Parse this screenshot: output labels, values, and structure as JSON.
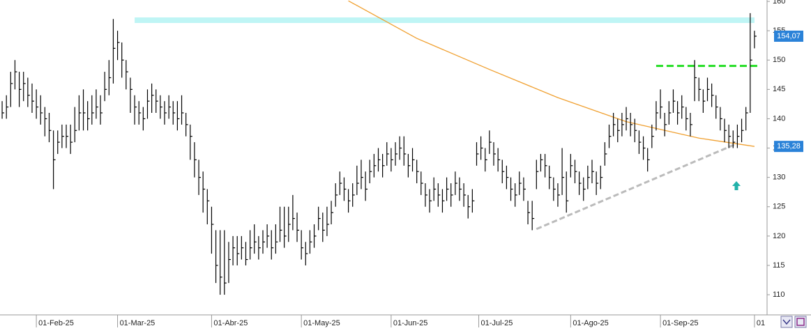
{
  "chart_data": {
    "type": "ohlc",
    "xlim": [
      -0.5,
      176.5
    ],
    "ylim": [
      106.8,
      160.24
    ],
    "yticks": [
      110,
      115,
      120,
      125,
      130,
      135,
      140,
      145,
      150,
      155,
      160
    ],
    "xticks": [
      {
        "value": 8,
        "label": "01-Feb-25"
      },
      {
        "value": 27,
        "label": "01-Mar-25"
      },
      {
        "value": 49,
        "label": "01-Abr-25"
      },
      {
        "value": 70,
        "label": "01-May-25"
      },
      {
        "value": 91,
        "label": "01-Jun-25"
      },
      {
        "value": 111.5,
        "label": "01-Jul-25"
      },
      {
        "value": 133,
        "label": "01-Ago-25"
      },
      {
        "value": 154,
        "label": "01-Sep-25"
      },
      {
        "value": 176,
        "label": "01"
      }
    ],
    "color": "#000000",
    "high": [
      143,
      144,
      148,
      150,
      148,
      148,
      147,
      146,
      145,
      144,
      142,
      141,
      138,
      138,
      139,
      139,
      139,
      142,
      144,
      145,
      143,
      144,
      145,
      144,
      148,
      150,
      157,
      155,
      153,
      150,
      147,
      144,
      143,
      142,
      145,
      146,
      145,
      144,
      143,
      144,
      143,
      143,
      144,
      141,
      139,
      136,
      133,
      131,
      128,
      125,
      121,
      121,
      121,
      119,
      120,
      120,
      120,
      119,
      121,
      122,
      120,
      121,
      122,
      121,
      122,
      125,
      125,
      125,
      127,
      124,
      121,
      119,
      121,
      122,
      125,
      124,
      125,
      126,
      129,
      131,
      130,
      128,
      129,
      132,
      133,
      131,
      133,
      134,
      135,
      134,
      136,
      135,
      136,
      137,
      137,
      134,
      135,
      133,
      131,
      129,
      128,
      130,
      129,
      128,
      130,
      129,
      131,
      130,
      129,
      127,
      128,
      136,
      137,
      135,
      138,
      136,
      135,
      133,
      132,
      130,
      129,
      131,
      130,
      126,
      126,
      133,
      134,
      134,
      132,
      130,
      129,
      135,
      131,
      134,
      133,
      131,
      130,
      132,
      133,
      131,
      132,
      136,
      139,
      141,
      140,
      141,
      142,
      141,
      140,
      138,
      137,
      135,
      139,
      143,
      145,
      141,
      143,
      145,
      143,
      144,
      142,
      141,
      150,
      147,
      145,
      147,
      146,
      144,
      142,
      140,
      139,
      138,
      139,
      140,
      142,
      158,
      155
    ],
    "low": [
      140,
      140,
      142,
      145,
      142,
      143,
      142,
      141,
      140,
      139,
      137,
      136,
      128,
      134,
      135,
      135,
      134,
      136,
      138,
      138,
      138,
      139,
      140,
      139,
      143,
      144,
      146,
      150,
      147,
      145,
      141,
      139,
      139,
      138,
      140,
      141,
      141,
      140,
      139,
      140,
      139,
      138,
      139,
      137,
      133,
      130,
      127,
      124,
      122,
      117,
      112,
      110,
      110,
      112,
      115,
      115,
      116,
      115,
      116,
      117,
      116,
      117,
      118,
      116,
      117,
      119,
      118,
      119,
      121,
      119,
      116,
      115,
      117,
      118,
      121,
      119,
      120,
      122,
      125,
      127,
      126,
      124,
      125,
      127,
      128,
      126,
      129,
      130,
      131,
      130,
      132,
      131,
      132,
      133,
      132,
      130,
      131,
      129,
      127,
      125,
      124,
      126,
      125,
      124,
      126,
      125,
      127,
      126,
      125,
      123,
      124,
      132,
      133,
      131,
      134,
      132,
      131,
      129,
      128,
      126,
      125,
      127,
      126,
      122,
      121,
      128,
      131,
      130,
      128,
      126,
      125,
      127,
      124,
      130,
      129,
      127,
      126,
      128,
      129,
      127,
      128,
      132,
      135,
      137,
      136,
      137,
      138,
      137,
      136,
      134,
      133,
      131,
      135,
      138,
      140,
      137,
      139,
      141,
      139,
      140,
      138,
      137,
      143,
      143,
      141,
      143,
      142,
      140,
      138,
      136,
      135,
      135,
      135,
      136,
      138,
      141,
      152
    ],
    "close": [
      141,
      142,
      146,
      148,
      145,
      146,
      144,
      143,
      142,
      141,
      140,
      138,
      133,
      136,
      137,
      137,
      136,
      138,
      141,
      141,
      140,
      141,
      142,
      141,
      145,
      147,
      152,
      153,
      150,
      148,
      145,
      142,
      141,
      140,
      143,
      144,
      143,
      142,
      141,
      142,
      141,
      140,
      141,
      139,
      137,
      133,
      130,
      128,
      126,
      122,
      115,
      113,
      112,
      116,
      118,
      117,
      118,
      116,
      118,
      119,
      118,
      119,
      120,
      118,
      119,
      121,
      120,
      122,
      123,
      121,
      118,
      117,
      119,
      120,
      123,
      121,
      122,
      124,
      127,
      129,
      128,
      126,
      127,
      129,
      130,
      128,
      131,
      132,
      133,
      132,
      134,
      133,
      134,
      135,
      134,
      132,
      133,
      131,
      129,
      127,
      126,
      128,
      127,
      126,
      128,
      127,
      129,
      128,
      127,
      125,
      126,
      134,
      135,
      133,
      136,
      134,
      133,
      131,
      130,
      128,
      127,
      129,
      128,
      124,
      123,
      131,
      133,
      132,
      130,
      128,
      127,
      130,
      126,
      132,
      131,
      129,
      128,
      130,
      131,
      129,
      130,
      134,
      137,
      139,
      138,
      139,
      140,
      139,
      138,
      136,
      135,
      133,
      137,
      141,
      142,
      139,
      141,
      143,
      141,
      142,
      140,
      139,
      147,
      145,
      143,
      145,
      144,
      142,
      140,
      138,
      137,
      136,
      137,
      138,
      141,
      150,
      154.07
    ],
    "moving_average": {
      "color": "#f0a030",
      "x": [
        81,
        97,
        114,
        130,
        146,
        163,
        176
      ],
      "values": [
        160.1,
        153.7,
        148.4,
        143.6,
        139.5,
        136.7,
        135.28
      ]
    },
    "resistance_band": {
      "color": "#b8f4f4",
      "x": [
        31,
        176
      ],
      "values": [
        156.8,
        156.8
      ]
    },
    "breakout_line": {
      "color": "#22dd22",
      "x": [
        153,
        177
      ],
      "values": [
        149,
        149
      ]
    },
    "trend_line": {
      "color": "#bbbbbb",
      "x": [
        125,
        172
      ],
      "values": [
        121.2,
        135.8
      ]
    },
    "price_labels": [
      {
        "value": 154.07,
        "label": "154,07",
        "color": "#2a82d8"
      },
      {
        "value": 135.28,
        "label": "135,28",
        "color": "#2a82d8"
      }
    ],
    "grid": false
  }
}
